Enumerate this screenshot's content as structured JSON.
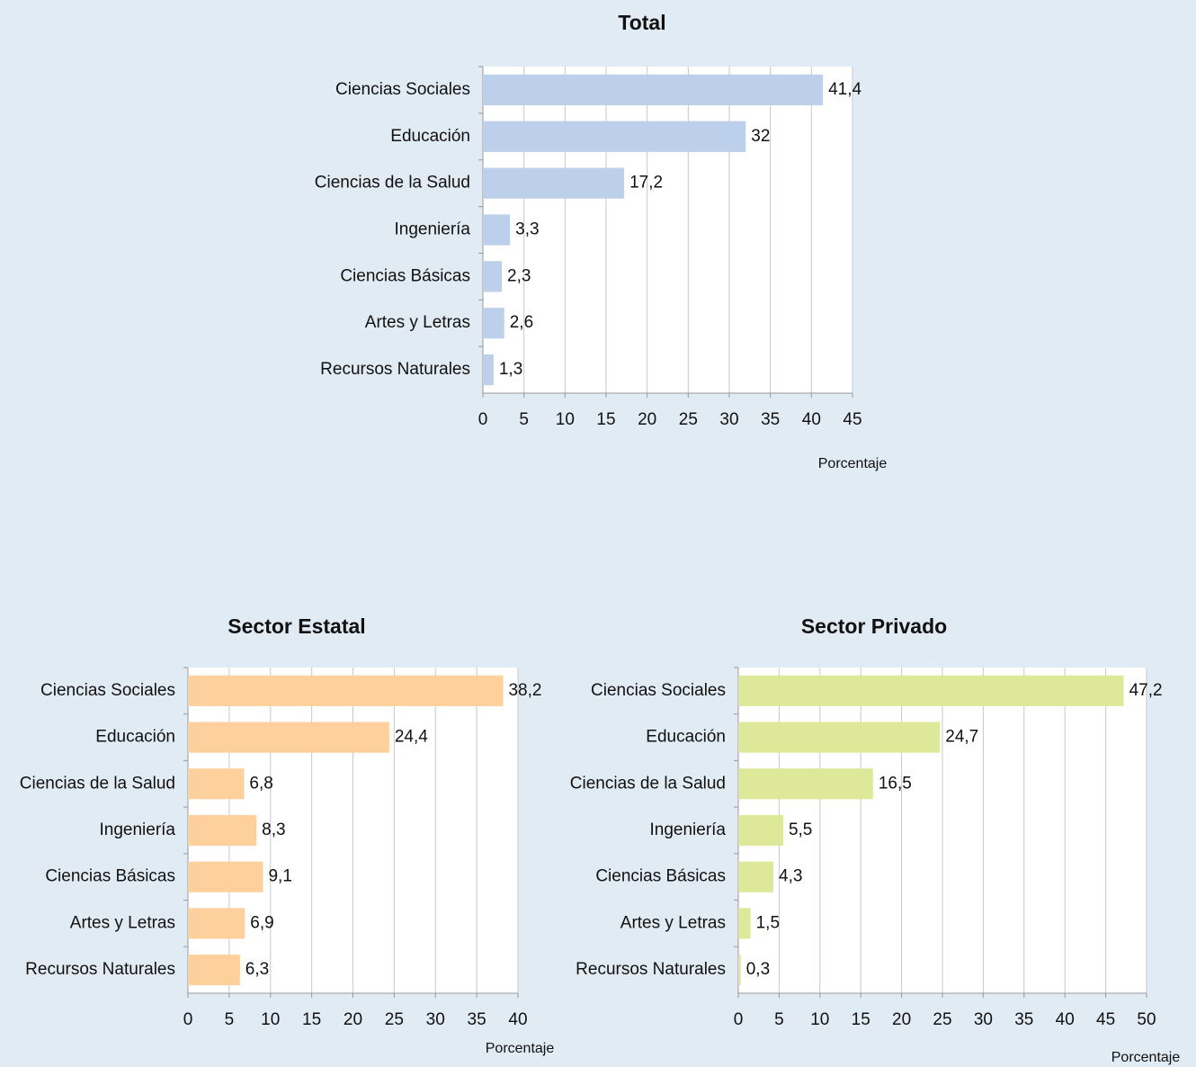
{
  "chart_data": [
    {
      "type": "bar",
      "orientation": "horizontal",
      "title": "Total",
      "x_label": "Porcentaje",
      "categories": [
        "Ciencias Sociales",
        "Educación",
        "Ciencias de la Salud",
        "Ingeniería",
        "Ciencias Básicas",
        "Artes y Letras",
        "Recursos Naturales"
      ],
      "values": [
        41.4,
        32,
        17.2,
        3.3,
        2.3,
        2.6,
        1.3
      ],
      "value_labels": [
        "41,4",
        "32",
        "17,2",
        "3,3",
        "2,3",
        "2,6",
        "1,3"
      ],
      "color": "#bcd0ec",
      "xlim": [
        0,
        45
      ],
      "xticks": [
        0,
        5,
        10,
        15,
        20,
        25,
        30,
        35,
        40,
        45
      ],
      "grid": true
    },
    {
      "type": "bar",
      "orientation": "horizontal",
      "title": "Sector Estatal",
      "x_label": "Porcentaje",
      "categories": [
        "Ciencias Sociales",
        "Educación",
        "Ciencias de la Salud",
        "Ingeniería",
        "Ciencias Básicas",
        "Artes y Letras",
        "Recursos Naturales"
      ],
      "values": [
        38.2,
        24.4,
        6.8,
        8.3,
        9.1,
        6.9,
        6.3
      ],
      "value_labels": [
        "38,2",
        "24,4",
        "6,8",
        "8,3",
        "9,1",
        "6,9",
        "6,3"
      ],
      "color": "#fdd09c",
      "xlim": [
        0,
        40
      ],
      "xticks": [
        0,
        5,
        10,
        15,
        20,
        25,
        30,
        35,
        40
      ],
      "grid": true
    },
    {
      "type": "bar",
      "orientation": "horizontal",
      "title": "Sector Privado",
      "x_label": "Porcentaje",
      "categories": [
        "Ciencias Sociales",
        "Educación",
        "Ciencias de la Salud",
        "Ingeniería",
        "Ciencias Básicas",
        "Artes y Letras",
        "Recursos Naturales"
      ],
      "values": [
        47.2,
        24.7,
        16.5,
        5.5,
        4.3,
        1.5,
        0.3
      ],
      "value_labels": [
        "47,2",
        "24,7",
        "16,5",
        "5,5",
        "4,3",
        "1,5",
        "0,3"
      ],
      "color": "#dde899",
      "xlim": [
        0,
        50
      ],
      "xticks": [
        0,
        5,
        10,
        15,
        20,
        25,
        30,
        35,
        40,
        45,
        50
      ],
      "grid": true
    }
  ]
}
